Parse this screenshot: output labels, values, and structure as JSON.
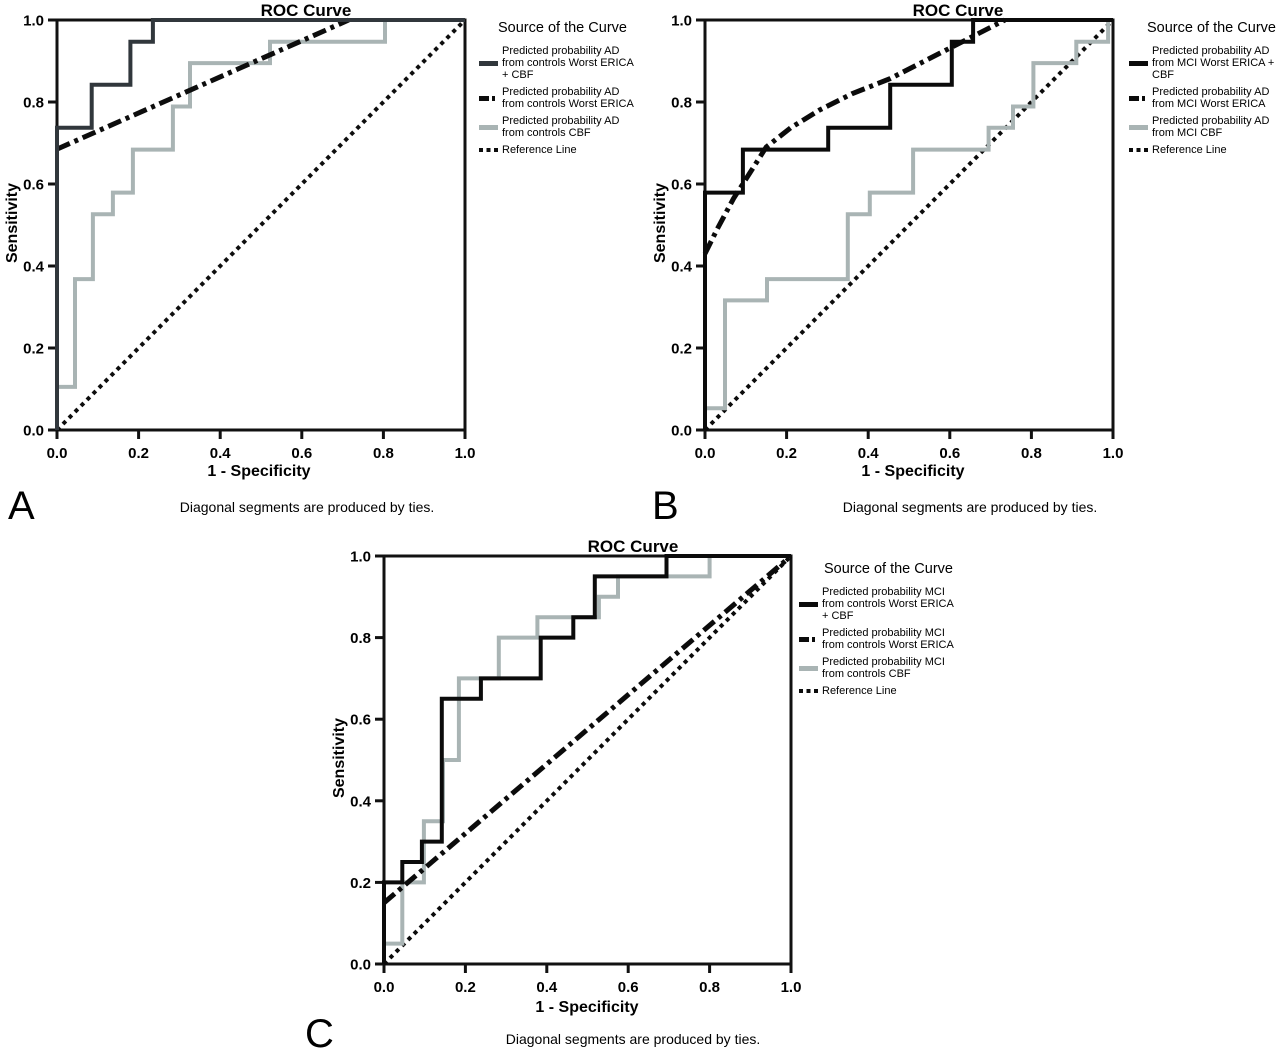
{
  "figure": {
    "background": "#ffffff",
    "axis_color": "#111111",
    "gray_curve_color": "#a9b4b4",
    "black_curve_color": "#0b0b0b",
    "panel_a_curve_color": "#31373c"
  },
  "chart_data": [
    {
      "type": "line",
      "panel_label": "A",
      "title": "ROC Curve",
      "xlabel": "1 - Specificity",
      "ylabel": "Sensitivity",
      "caption": "Diagonal segments are produced by ties.",
      "legend_title": "Source of the Curve",
      "legend_position": "right",
      "grid": false,
      "xlim": [
        0,
        1
      ],
      "ylim": [
        0,
        1
      ],
      "xtick_labels": [
        "0.0",
        "0.2",
        "0.4",
        "0.6",
        "0.8",
        "1.0"
      ],
      "ytick_labels": [
        "0.0",
        "0.2",
        "0.4",
        "0.6",
        "0.8",
        "1.0"
      ],
      "series": [
        {
          "name": "Predicted probability AD\nfrom controls Worst ERICA\n+ CBF",
          "style": "solid",
          "color": "#31373c",
          "line_width": 4,
          "points": [
            [
              0,
              0
            ],
            [
              0,
              0.737
            ],
            [
              0.085,
              0.737
            ],
            [
              0.085,
              0.842
            ],
            [
              0.18,
              0.842
            ],
            [
              0.18,
              0.947
            ],
            [
              0.235,
              0.947
            ],
            [
              0.235,
              1.0
            ],
            [
              1,
              1.0
            ]
          ]
        },
        {
          "name": "Predicted probability AD\nfrom controls Worst ERICA",
          "style": "dashdot",
          "color": "#0d0d0d",
          "line_width": 5,
          "points": [
            [
              0,
              0.685
            ],
            [
              0.715,
              1.0
            ]
          ]
        },
        {
          "name": "Predicted probability AD\nfrom controls CBF",
          "style": "solid",
          "color": "#a9b4b4",
          "line_width": 4,
          "points": [
            [
              0,
              0
            ],
            [
              0,
              0.105
            ],
            [
              0.044,
              0.105
            ],
            [
              0.044,
              0.368
            ],
            [
              0.088,
              0.368
            ],
            [
              0.088,
              0.526
            ],
            [
              0.137,
              0.526
            ],
            [
              0.137,
              0.579
            ],
            [
              0.186,
              0.579
            ],
            [
              0.186,
              0.684
            ],
            [
              0.284,
              0.684
            ],
            [
              0.284,
              0.789
            ],
            [
              0.326,
              0.789
            ],
            [
              0.326,
              0.895
            ],
            [
              0.522,
              0.895
            ],
            [
              0.522,
              0.947
            ],
            [
              0.804,
              0.947
            ],
            [
              0.804,
              1.0
            ],
            [
              1,
              1.0
            ]
          ]
        },
        {
          "name": "Reference Line",
          "style": "dotted",
          "color": "#0d0d0d",
          "line_width": 4,
          "points": [
            [
              0,
              0
            ],
            [
              1,
              1
            ]
          ]
        }
      ]
    },
    {
      "type": "line",
      "panel_label": "B",
      "title": "ROC Curve",
      "xlabel": "1 - Specificity",
      "ylabel": "Sensitivity",
      "caption": "Diagonal segments are produced by ties.",
      "legend_title": "Source of the Curve",
      "legend_position": "right",
      "grid": false,
      "xlim": [
        0,
        1
      ],
      "ylim": [
        0,
        1
      ],
      "xtick_labels": [
        "0.0",
        "0.2",
        "0.4",
        "0.6",
        "0.8",
        "1.0"
      ],
      "ytick_labels": [
        "0.0",
        "0.2",
        "0.4",
        "0.6",
        "0.8",
        "1.0"
      ],
      "series": [
        {
          "name": "Predicted probability AD\nfrom MCI Worst ERICA +\nCBF",
          "style": "solid",
          "color": "#0b0b0b",
          "line_width": 4,
          "points": [
            [
              0,
              0
            ],
            [
              0,
              0.579
            ],
            [
              0.093,
              0.579
            ],
            [
              0.093,
              0.684
            ],
            [
              0.302,
              0.684
            ],
            [
              0.302,
              0.737
            ],
            [
              0.454,
              0.737
            ],
            [
              0.454,
              0.842
            ],
            [
              0.605,
              0.842
            ],
            [
              0.605,
              0.947
            ],
            [
              0.657,
              0.947
            ],
            [
              0.657,
              1.0
            ],
            [
              1,
              1.0
            ]
          ]
        },
        {
          "name": "Predicted probability AD\nfrom MCI Worst ERICA",
          "style": "dashdot",
          "color": "#0b0b0b",
          "line_width": 5,
          "points": [
            [
              0,
              0.43
            ],
            [
              0.03,
              0.49
            ],
            [
              0.07,
              0.565
            ],
            [
              0.11,
              0.627
            ],
            [
              0.15,
              0.69
            ],
            [
              0.21,
              0.737
            ],
            [
              0.28,
              0.78
            ],
            [
              0.36,
              0.82
            ],
            [
              0.454,
              0.857
            ],
            [
              0.735,
              1.0
            ]
          ]
        },
        {
          "name": "Predicted probability AD\nfrom MCI CBF",
          "style": "solid",
          "color": "#a9b4b4",
          "line_width": 4,
          "points": [
            [
              0,
              0
            ],
            [
              0,
              0.053
            ],
            [
              0.049,
              0.053
            ],
            [
              0.049,
              0.316
            ],
            [
              0.152,
              0.316
            ],
            [
              0.152,
              0.368
            ],
            [
              0.35,
              0.368
            ],
            [
              0.35,
              0.526
            ],
            [
              0.404,
              0.526
            ],
            [
              0.404,
              0.579
            ],
            [
              0.51,
              0.579
            ],
            [
              0.51,
              0.684
            ],
            [
              0.695,
              0.684
            ],
            [
              0.695,
              0.737
            ],
            [
              0.755,
              0.737
            ],
            [
              0.755,
              0.789
            ],
            [
              0.805,
              0.789
            ],
            [
              0.805,
              0.895
            ],
            [
              0.91,
              0.895
            ],
            [
              0.91,
              0.947
            ],
            [
              0.988,
              0.947
            ],
            [
              0.988,
              1.0
            ],
            [
              1,
              1.0
            ]
          ]
        },
        {
          "name": "Reference Line",
          "style": "dotted",
          "color": "#0b0b0b",
          "line_width": 4,
          "points": [
            [
              0,
              0
            ],
            [
              1,
              1
            ]
          ]
        }
      ]
    },
    {
      "type": "line",
      "panel_label": "C",
      "title": "ROC Curve",
      "xlabel": "1 - Specificity",
      "ylabel": "Sensitivity",
      "caption": "Diagonal segments are produced by ties.",
      "legend_title": "Source of the Curve",
      "legend_position": "right",
      "grid": false,
      "xlim": [
        0,
        1
      ],
      "ylim": [
        0,
        1
      ],
      "xtick_labels": [
        "0.0",
        "0.2",
        "0.4",
        "0.6",
        "0.8",
        "1.0"
      ],
      "ytick_labels": [
        "0.0",
        "0.2",
        "0.4",
        "0.6",
        "0.8",
        "1.0"
      ],
      "series": [
        {
          "name": "Predicted probability MCI\nfrom controls Worst ERICA\n+ CBF",
          "style": "solid",
          "color": "#0b0b0b",
          "line_width": 4,
          "points": [
            [
              0,
              0
            ],
            [
              0,
              0.2
            ],
            [
              0.045,
              0.2
            ],
            [
              0.045,
              0.25
            ],
            [
              0.093,
              0.25
            ],
            [
              0.093,
              0.3
            ],
            [
              0.142,
              0.3
            ],
            [
              0.142,
              0.65
            ],
            [
              0.238,
              0.65
            ],
            [
              0.238,
              0.7
            ],
            [
              0.385,
              0.7
            ],
            [
              0.385,
              0.8
            ],
            [
              0.465,
              0.8
            ],
            [
              0.465,
              0.85
            ],
            [
              0.518,
              0.85
            ],
            [
              0.518,
              0.95
            ],
            [
              0.694,
              0.95
            ],
            [
              0.694,
              1.0
            ],
            [
              1,
              1.0
            ]
          ]
        },
        {
          "name": "Predicted probability MCI\nfrom controls Worst ERICA",
          "style": "dashdot",
          "color": "#0b0b0b",
          "line_width": 5,
          "points": [
            [
              0,
              0.15
            ],
            [
              1,
              1.0
            ]
          ]
        },
        {
          "name": "Predicted probability MCI\nfrom controls CBF",
          "style": "solid",
          "color": "#a9b4b4",
          "line_width": 4,
          "points": [
            [
              0,
              0
            ],
            [
              0,
              0.05
            ],
            [
              0.045,
              0.05
            ],
            [
              0.045,
              0.2
            ],
            [
              0.098,
              0.2
            ],
            [
              0.098,
              0.35
            ],
            [
              0.145,
              0.35
            ],
            [
              0.145,
              0.5
            ],
            [
              0.184,
              0.5
            ],
            [
              0.184,
              0.7
            ],
            [
              0.282,
              0.7
            ],
            [
              0.282,
              0.8
            ],
            [
              0.377,
              0.8
            ],
            [
              0.377,
              0.85
            ],
            [
              0.528,
              0.85
            ],
            [
              0.528,
              0.9
            ],
            [
              0.575,
              0.9
            ],
            [
              0.575,
              0.95
            ],
            [
              0.8,
              0.95
            ],
            [
              0.8,
              1.0
            ],
            [
              1,
              1.0
            ]
          ]
        },
        {
          "name": "Reference Line",
          "style": "dotted",
          "color": "#0b0b0b",
          "line_width": 4,
          "points": [
            [
              0,
              0
            ],
            [
              1,
              1
            ]
          ]
        }
      ]
    }
  ]
}
